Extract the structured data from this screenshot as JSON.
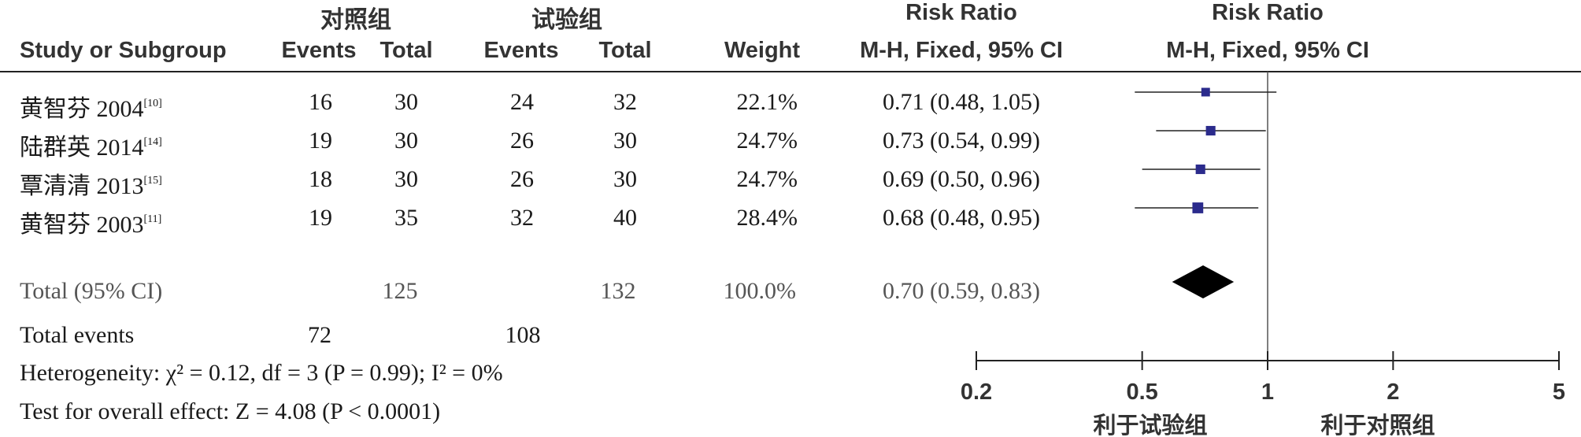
{
  "header": {
    "group_control": "对照组",
    "group_experimental": "试验组",
    "rr_title_1": "Risk Ratio",
    "rr_title_2": "Risk Ratio",
    "col_study": "Study or Subgroup",
    "col_events_c": "Events",
    "col_total_c": "Total",
    "col_events_e": "Events",
    "col_total_e": "Total",
    "col_weight": "Weight",
    "col_mh_1": "M-H, Fixed, 95% CI",
    "col_mh_2": "M-H, Fixed, 95% CI"
  },
  "rows": [
    {
      "study": "黄智芬 2004",
      "ref": "[10]",
      "events_c": "16",
      "total_c": "30",
      "events_e": "24",
      "total_e": "32",
      "weight": "22.1%",
      "ci_text": "0.71 (0.48, 1.05)"
    },
    {
      "study": "陆群英 2014",
      "ref": "[14]",
      "events_c": "19",
      "total_c": "30",
      "events_e": "26",
      "total_e": "30",
      "weight": "24.7%",
      "ci_text": "0.73 (0.54, 0.99)"
    },
    {
      "study": "覃清清 2013",
      "ref": "[15]",
      "events_c": "18",
      "total_c": "30",
      "events_e": "26",
      "total_e": "30",
      "weight": "24.7%",
      "ci_text": "0.69 (0.50, 0.96)"
    },
    {
      "study": "黄智芬 2003",
      "ref": "[11]",
      "events_c": "19",
      "total_c": "35",
      "events_e": "32",
      "total_e": "40",
      "weight": "28.4%",
      "ci_text": "0.68 (0.48, 0.95)"
    }
  ],
  "total": {
    "label": "Total (95% CI)",
    "total_c": "125",
    "total_e": "132",
    "weight": "100.0%",
    "ci_text": "0.70 (0.59, 0.83)"
  },
  "total_events": {
    "label": "Total events",
    "events_c": "72",
    "events_e": "108"
  },
  "heterogeneity": "Heterogeneity: χ² = 0.12, df = 3 (P = 0.99); I² = 0%",
  "overall_effect": "Test for overall effect: Z = 4.08 (P < 0.0001)",
  "axis": {
    "favours_left": "利于试验组",
    "favours_right": "利于对照组"
  },
  "chart_data": {
    "type": "forest",
    "scale": "log",
    "xlim": [
      0.2,
      5
    ],
    "reference_line": 1,
    "ticks": [
      0.2,
      0.5,
      1,
      2,
      5
    ],
    "tick_labels": [
      "0.2",
      "0.5",
      "1",
      "2",
      "5"
    ],
    "studies": [
      {
        "name": "黄智芬 2004",
        "rr": 0.71,
        "lower": 0.48,
        "upper": 1.05,
        "weight": 22.1
      },
      {
        "name": "陆群英 2014",
        "rr": 0.73,
        "lower": 0.54,
        "upper": 0.99,
        "weight": 24.7
      },
      {
        "name": "覃清清 2013",
        "rr": 0.69,
        "lower": 0.5,
        "upper": 0.96,
        "weight": 24.7
      },
      {
        "name": "黄智芬 2003",
        "rr": 0.68,
        "lower": 0.48,
        "upper": 0.95,
        "weight": 28.4
      }
    ],
    "pooled": {
      "rr": 0.7,
      "lower": 0.59,
      "upper": 0.83
    },
    "colors": {
      "marker": "#2b2b8c",
      "line": "#222222",
      "diamond": "#000000"
    }
  }
}
